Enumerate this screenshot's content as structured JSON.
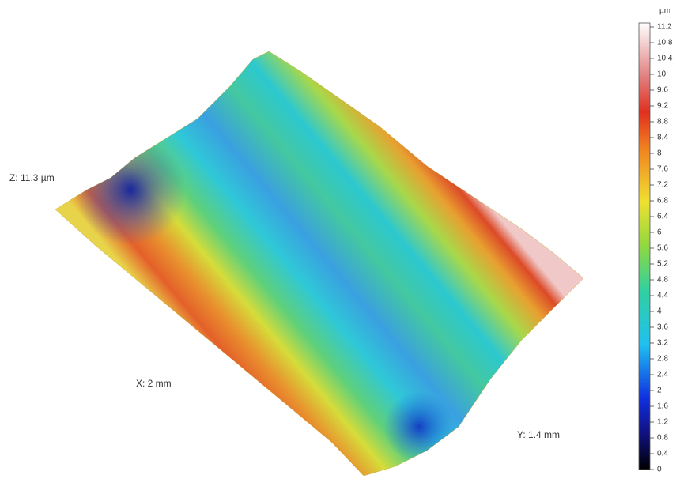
{
  "labels": {
    "z": "Z: 11.3 µm",
    "x": "X: 2 mm",
    "y": "Y: 1.4 mm"
  },
  "colorbar": {
    "unit": "µm",
    "range": [
      0,
      11.3
    ],
    "ticks": [
      0,
      0.4,
      0.8,
      1.2,
      1.6,
      2,
      2.4,
      2.8,
      3.2,
      3.6,
      4,
      4.4,
      4.8,
      5.2,
      5.6,
      6,
      6.4,
      6.8,
      7.2,
      7.6,
      8,
      8.4,
      8.8,
      9.2,
      9.6,
      10,
      10.4,
      10.8,
      11.2
    ]
  }
}
